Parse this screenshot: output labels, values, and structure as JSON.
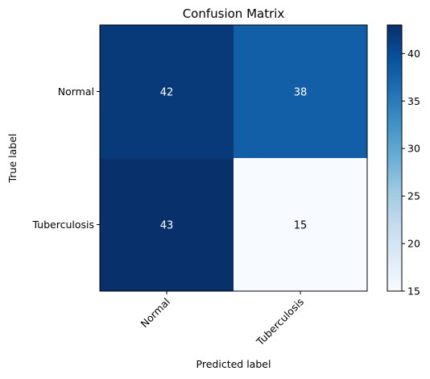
{
  "chart_data": {
    "type": "heatmap",
    "title": "Confusion Matrix",
    "xlabel": "Predicted label",
    "ylabel": "True label",
    "x_categories": [
      "Normal",
      "Tuberculosis"
    ],
    "y_categories": [
      "Normal",
      "Tuberculosis"
    ],
    "values": [
      [
        42,
        38
      ],
      [
        43,
        15
      ]
    ],
    "colormap": "Blues",
    "colorbar": {
      "min": 15,
      "max": 43,
      "ticks": [
        15,
        20,
        25,
        30,
        35,
        40
      ]
    },
    "x_tick_rotation": 45
  }
}
